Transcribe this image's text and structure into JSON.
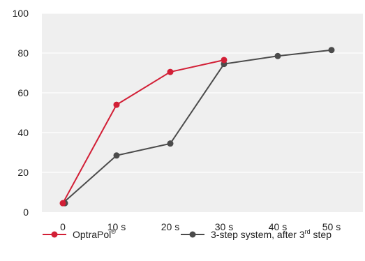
{
  "chart_data": {
    "type": "line",
    "categories": [
      "0",
      "10 s",
      "20 s",
      "30 s",
      "40 s",
      "50 s"
    ],
    "ylim": [
      0,
      100
    ],
    "yticks": [
      "0",
      "20",
      "40",
      "60",
      "80",
      "100"
    ],
    "grid": "horizontal",
    "background": "#efefef",
    "gridColor": "#ffffff",
    "legend_position": "bottom",
    "series": [
      {
        "name_parts": {
          "main": "OptraPol",
          "sup": "®",
          "after": ""
        },
        "color": "#d21f36",
        "values": [
          4.5,
          54,
          70.5,
          76.5,
          null,
          null
        ]
      },
      {
        "name_parts": {
          "main": "3-step system, after 3",
          "sup": "rd",
          "after": " step"
        },
        "color": "#4b4b4b",
        "values": [
          4.5,
          28.5,
          34.5,
          74.5,
          78.5,
          81.5
        ]
      }
    ]
  }
}
